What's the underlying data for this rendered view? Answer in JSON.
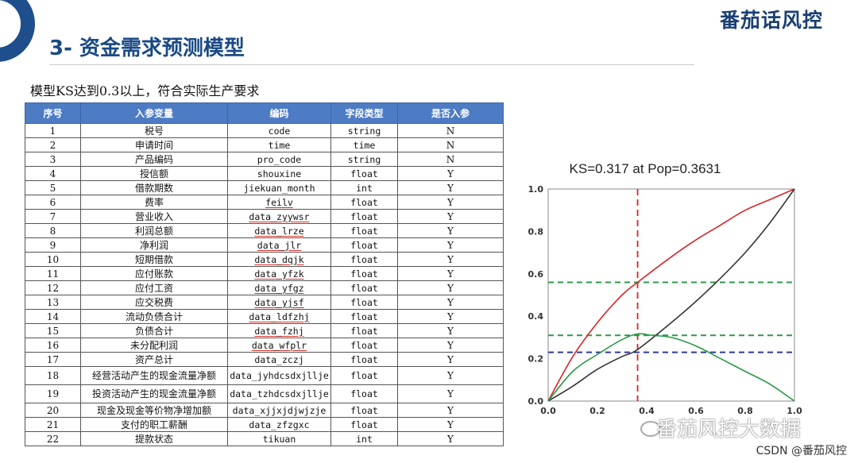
{
  "brand": "番茄话风控",
  "title": "3- 资金需求预测模型",
  "subtitle": "模型KS达到0.3以上，符合实际生产要求",
  "table": {
    "headers": [
      "序号",
      "入参变量",
      "编码",
      "字段类型",
      "是否入参"
    ],
    "rows": [
      [
        "1",
        "税号",
        "code",
        "string",
        "N"
      ],
      [
        "2",
        "申请时间",
        "time",
        "time",
        "N"
      ],
      [
        "3",
        "产品编码",
        "pro_code",
        "string",
        "N"
      ],
      [
        "4",
        "授信额",
        "shouxine",
        "float",
        "Y"
      ],
      [
        "5",
        "借款期数",
        "jiekuan_month",
        "int",
        "Y"
      ],
      [
        "6",
        "费率",
        "feilv",
        "float",
        "Y"
      ],
      [
        "7",
        "营业收入",
        "data_zyywsr",
        "float",
        "Y"
      ],
      [
        "8",
        "利润总额",
        "data_lrze",
        "float",
        "Y"
      ],
      [
        "9",
        "净利润",
        "data_jlr",
        "float",
        "Y"
      ],
      [
        "10",
        "短期借款",
        "data_dqjk",
        "float",
        "Y"
      ],
      [
        "11",
        "应付账款",
        "data_yfzk",
        "float",
        "Y"
      ],
      [
        "12",
        "应付工资",
        "data_yfgz",
        "float",
        "Y"
      ],
      [
        "13",
        "应交税费",
        "data_yjsf",
        "float",
        "Y"
      ],
      [
        "14",
        "流动负债合计",
        "data_ldfzhj",
        "float",
        "Y"
      ],
      [
        "15",
        "负债合计",
        "data_fzhj",
        "float",
        "Y"
      ],
      [
        "16",
        "未分配利润",
        "data_wfplr",
        "float",
        "Y"
      ],
      [
        "17",
        "资产总计",
        "data_zczj",
        "float",
        "Y"
      ],
      [
        "18",
        "经营活动产生的现金流量净额",
        "data_jyhdcsdxjllje",
        "float",
        "Y"
      ],
      [
        "19",
        "投资活动产生的现金流量净额",
        "data_tzhdcsdxjllje",
        "float",
        "Y"
      ],
      [
        "20",
        "现金及现金等价物净增加额",
        "data_xjjxjdjwjzje",
        "float",
        "Y"
      ],
      [
        "21",
        "支付的职工薪酬",
        "data_zfzgxc",
        "float",
        "Y"
      ],
      [
        "22",
        "提款状态",
        "tikuan",
        "int",
        "Y"
      ]
    ]
  },
  "chart_data": {
    "type": "line",
    "title": "KS=0.317 at Pop=0.3631",
    "xlim": [
      0.0,
      1.0
    ],
    "ylim": [
      0.0,
      1.0
    ],
    "xticks": [
      "0.0",
      "0.2",
      "0.4",
      "0.6",
      "0.8",
      "1.0"
    ],
    "yticks": [
      "0.0",
      "0.2",
      "0.4",
      "0.6",
      "0.8",
      "1.0"
    ],
    "grid": false,
    "legend": "none",
    "series": [
      {
        "color": "#d9252a",
        "x": [
          0,
          0.1,
          0.2,
          0.3,
          0.3631,
          0.5,
          0.6,
          0.7,
          0.8,
          0.9,
          1.0
        ],
        "y": [
          0,
          0.21,
          0.37,
          0.5,
          0.56,
          0.68,
          0.76,
          0.83,
          0.9,
          0.95,
          1.0
        ]
      },
      {
        "color": "#333333",
        "x": [
          0,
          0.1,
          0.2,
          0.3,
          0.3631,
          0.5,
          0.6,
          0.7,
          0.8,
          0.9,
          1.0
        ],
        "y": [
          0,
          0.07,
          0.15,
          0.21,
          0.243,
          0.37,
          0.47,
          0.58,
          0.7,
          0.84,
          1.0
        ]
      },
      {
        "color": "#2a9a45",
        "x": [
          0,
          0.1,
          0.2,
          0.3,
          0.3631,
          0.42,
          0.5,
          0.6,
          0.7,
          0.8,
          0.9,
          1.0
        ],
        "y": [
          0,
          0.14,
          0.22,
          0.29,
          0.317,
          0.31,
          0.3,
          0.26,
          0.2,
          0.14,
          0.08,
          0.0
        ]
      }
    ],
    "reference_lines": [
      {
        "orientation": "vertical",
        "value": 0.3631,
        "color": "#d9252a",
        "style": "dashed"
      },
      {
        "orientation": "horizontal",
        "value": 0.56,
        "color": "#2a9a45",
        "style": "dashed"
      },
      {
        "orientation": "horizontal",
        "value": 0.31,
        "color": "#2a9a45",
        "style": "dashed"
      },
      {
        "orientation": "horizontal",
        "value": 0.23,
        "color": "#2b3a96",
        "style": "dashed"
      }
    ]
  },
  "watermark": "番茄风控大数据",
  "csdn": "CSDN @番茄风控",
  "colors": {
    "accent": "#1f4e8c",
    "header": "#4e7cc4"
  }
}
